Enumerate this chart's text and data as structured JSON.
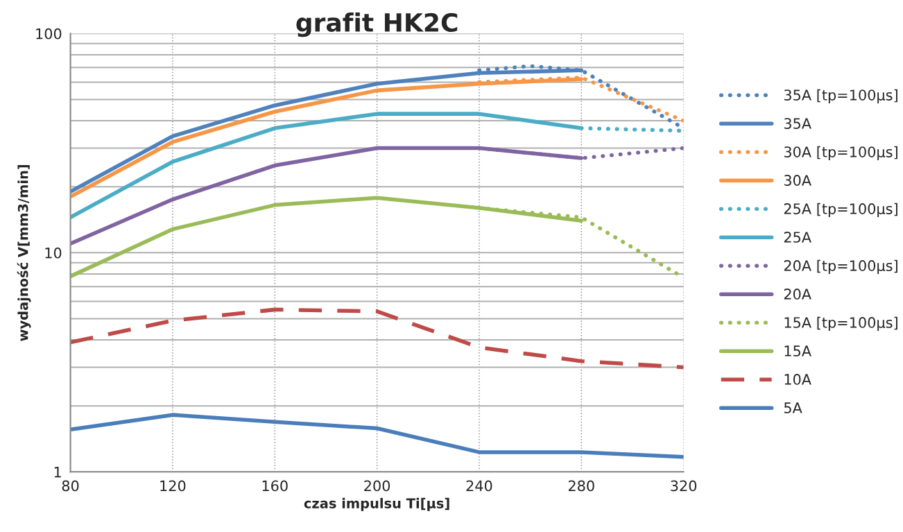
{
  "chart_data": {
    "type": "line",
    "title": "grafit HK2C",
    "xlabel": "czas impulsu Ti[µs]",
    "ylabel": "wydajność V[mm3/min]",
    "x": [
      80,
      120,
      160,
      200,
      240,
      280,
      320
    ],
    "log": "y",
    "xlim": [
      80,
      320
    ],
    "xticks": [
      80,
      120,
      160,
      200,
      240,
      280,
      320
    ],
    "ylim": [
      1,
      100
    ],
    "yticks": [
      1,
      {
        "value": 2,
        "label": null
      },
      {
        "value": 3,
        "label": null
      },
      {
        "value": 4,
        "label": null
      },
      {
        "value": 5,
        "label": null
      },
      {
        "value": 6,
        "label": null
      },
      {
        "value": 7,
        "label": null
      },
      {
        "value": 8,
        "label": null
      },
      {
        "value": 9,
        "label": null
      },
      10,
      {
        "value": 20,
        "label": null
      },
      {
        "value": 30,
        "label": null
      },
      {
        "value": 40,
        "label": null
      },
      {
        "value": 50,
        "label": null
      },
      {
        "value": 60,
        "label": null
      },
      {
        "value": 70,
        "label": null
      },
      {
        "value": 80,
        "label": null
      },
      {
        "value": 90,
        "label": null
      },
      100
    ],
    "grid": true,
    "legend": "right",
    "marker": "none",
    "series": [
      {
        "name": "35A [tp=100µs]",
        "color": "#4f81bd",
        "line_style": "dotted",
        "x": [
          240,
          260,
          280,
          320
        ],
        "values": [
          68,
          71,
          68,
          37
        ]
      },
      {
        "name": "35A",
        "color": "#4f81bd",
        "line_style": "solid",
        "x": [
          80,
          120,
          160,
          200,
          240,
          280
        ],
        "values": [
          19,
          34,
          47,
          59,
          66,
          68
        ]
      },
      {
        "name": "30A [tp=100µs]",
        "color": "#f79646",
        "line_style": "dotted",
        "x": [
          240,
          280,
          320
        ],
        "values": [
          60,
          63,
          40
        ]
      },
      {
        "name": "30A",
        "color": "#f79646",
        "line_style": "solid",
        "x": [
          80,
          120,
          160,
          200,
          240,
          280
        ],
        "values": [
          18,
          32,
          44,
          55,
          59,
          62
        ]
      },
      {
        "name": "25A [tp=100µs]",
        "color": "#4bacc6",
        "line_style": "dotted",
        "x": [
          280,
          320
        ],
        "values": [
          37,
          36
        ]
      },
      {
        "name": "25A",
        "color": "#4bacc6",
        "line_style": "solid",
        "x": [
          80,
          120,
          160,
          200,
          240,
          280
        ],
        "values": [
          14.5,
          26,
          37,
          43,
          43,
          37
        ]
      },
      {
        "name": "20A [tp=100µs]",
        "color": "#8064a2",
        "line_style": "dotted",
        "x": [
          240,
          280,
          320
        ],
        "values": [
          30,
          27,
          30
        ]
      },
      {
        "name": "20A",
        "color": "#8064a2",
        "line_style": "solid",
        "x": [
          80,
          120,
          160,
          200,
          240,
          280
        ],
        "values": [
          11,
          17.5,
          25,
          30,
          30,
          27
        ]
      },
      {
        "name": "15A [tp=100µs]",
        "color": "#9bbb59",
        "line_style": "dotted",
        "x": [
          240,
          280,
          320
        ],
        "values": [
          16,
          14.5,
          7.7
        ]
      },
      {
        "name": "15A",
        "color": "#9bbb59",
        "line_style": "solid",
        "x": [
          80,
          120,
          160,
          200,
          240,
          280
        ],
        "values": [
          7.8,
          12.8,
          16.5,
          17.8,
          16,
          14
        ]
      },
      {
        "name": "10A",
        "color": "#be4b48",
        "line_style": "dashed",
        "values": [
          3.9,
          4.9,
          5.5,
          5.4,
          3.7,
          3.2,
          3.0
        ]
      },
      {
        "name": "5A",
        "color": "#4a7ebb",
        "line_style": "solid",
        "values": [
          1.56,
          1.82,
          1.69,
          1.58,
          1.23,
          1.23,
          1.17
        ]
      }
    ]
  }
}
